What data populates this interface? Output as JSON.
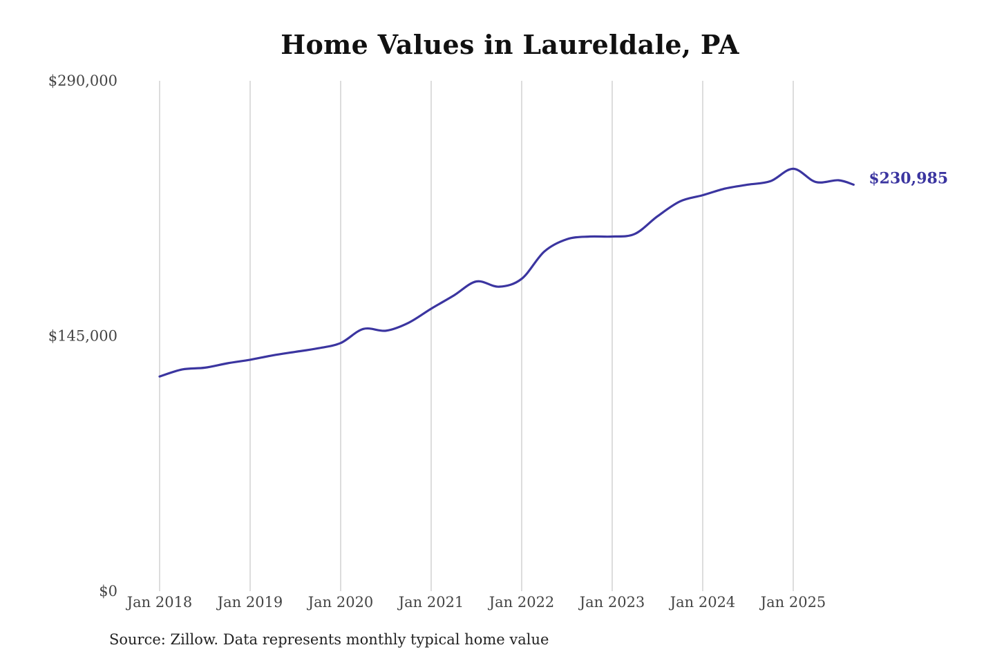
{
  "chart_data": {
    "type": "line",
    "title": "Home Values in Laureldale, PA",
    "xlabel": "",
    "ylabel": "",
    "x_tick_labels": [
      "Jan 2018",
      "Jan 2019",
      "Jan 2020",
      "Jan 2021",
      "Jan 2022",
      "Jan 2023",
      "Jan 2024",
      "Jan 2025"
    ],
    "y_tick_labels": [
      "$0",
      "$145,000",
      "$290,000"
    ],
    "y_ticks": [
      0,
      145000,
      290000
    ],
    "ylim": [
      0,
      290000
    ],
    "xlim": [
      "2018-01",
      "2025-09"
    ],
    "grid": "vertical",
    "legend": "none",
    "end_label": "$230,985",
    "line_color": "#3b35a0",
    "series": [
      {
        "x": [
          "2018-01",
          "2018-04",
          "2018-07",
          "2018-10",
          "2019-01",
          "2019-04",
          "2019-07",
          "2019-10",
          "2020-01",
          "2020-04",
          "2020-07",
          "2020-10",
          "2021-01",
          "2021-04",
          "2021-07",
          "2021-10",
          "2022-01",
          "2022-04",
          "2022-07",
          "2022-10",
          "2023-01",
          "2023-04",
          "2023-07",
          "2023-10",
          "2024-01",
          "2024-04",
          "2024-07",
          "2024-10",
          "2025-01",
          "2025-04",
          "2025-07",
          "2025-09"
        ],
        "values": [
          122000,
          126000,
          127000,
          129500,
          131500,
          134000,
          136000,
          138000,
          141000,
          149000,
          148000,
          152500,
          160500,
          168000,
          176000,
          173000,
          177500,
          193000,
          200000,
          201500,
          201500,
          203000,
          213000,
          221500,
          225000,
          228800,
          231000,
          233000,
          240000,
          232500,
          233500,
          230985
        ]
      }
    ]
  },
  "source_note": "Source: Zillow. Data represents monthly typical home value"
}
